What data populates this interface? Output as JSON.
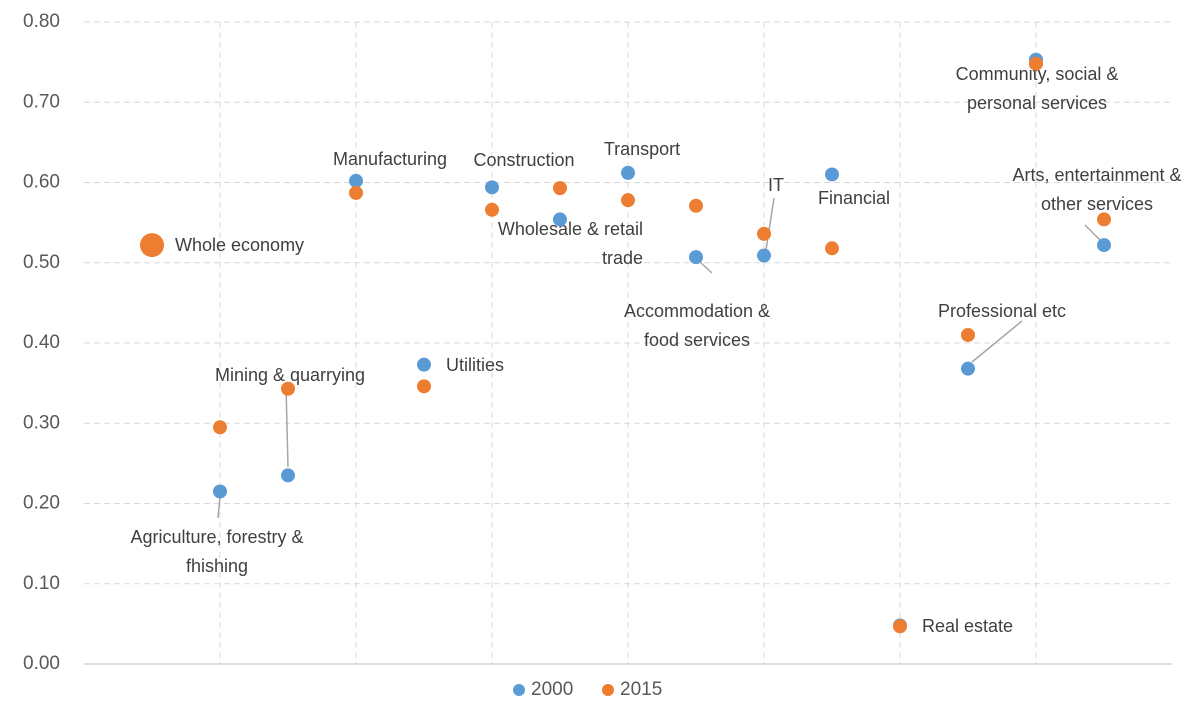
{
  "chart_data": {
    "type": "scatter",
    "x": [
      1,
      2,
      3,
      4,
      5,
      6,
      7,
      8,
      9,
      10,
      11,
      12,
      13,
      14,
      15
    ],
    "labels": [
      [
        "Whole economy"
      ],
      [
        "Agriculture, forestry &",
        "fhishing"
      ],
      [
        "Mining & quarrying"
      ],
      [
        "Manufacturing"
      ],
      [
        "Utilities"
      ],
      [
        "Construction"
      ],
      [
        "Wholesale & retail",
        "trade"
      ],
      [
        "Transport"
      ],
      [
        "Accommodation &",
        "food services"
      ],
      [
        "IT"
      ],
      [
        "Financial"
      ],
      [
        "Real estate"
      ],
      [
        "Professional etc"
      ],
      [
        "Community, social &",
        "personal services"
      ],
      [
        "Arts, entertainment &",
        "other services"
      ]
    ],
    "series": [
      {
        "name": "2000",
        "color": "#5b9bd5",
        "values": [
          null,
          0.215,
          0.235,
          0.602,
          0.373,
          0.594,
          0.554,
          0.612,
          0.507,
          0.509,
          0.61,
          0.048,
          0.368,
          0.753,
          0.522
        ]
      },
      {
        "name": "2015",
        "color": "#ed7d31",
        "values": [
          0.522,
          0.295,
          0.343,
          0.587,
          0.346,
          0.566,
          0.593,
          0.578,
          0.571,
          0.536,
          0.518,
          0.047,
          0.41,
          0.748,
          0.554
        ]
      }
    ],
    "xlim": [
      0,
      16
    ],
    "xticks": [
      2,
      4,
      6,
      8,
      10,
      12,
      14
    ],
    "ylim": [
      0,
      0.8
    ],
    "yticks": [
      {
        "value": 0,
        "label": "0.00"
      },
      {
        "value": 0.1,
        "label": "0.10"
      },
      {
        "value": 0.2,
        "label": "0.20"
      },
      {
        "value": 0.3,
        "label": "0.30"
      },
      {
        "value": 0.4,
        "label": "0.40"
      },
      {
        "value": 0.5,
        "label": "0.50"
      },
      {
        "value": 0.6,
        "label": "0.60"
      },
      {
        "value": 0.7,
        "label": "0.70"
      },
      {
        "value": 0.8,
        "label": "0.80"
      }
    ],
    "grid": true,
    "legend": "bottom"
  }
}
